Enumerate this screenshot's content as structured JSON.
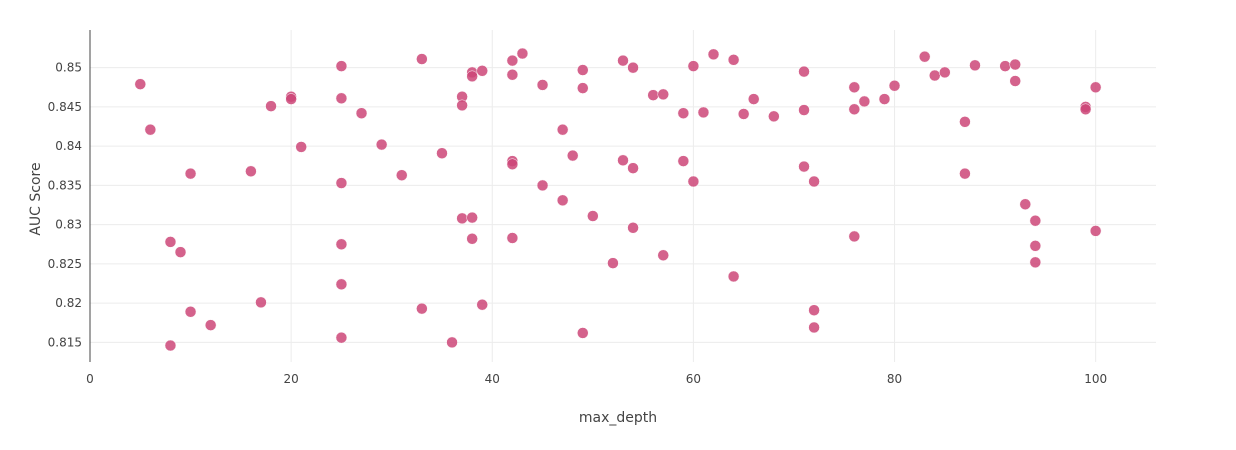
{
  "chart_data": {
    "type": "scatter",
    "title": "",
    "xlabel": "max_depth",
    "ylabel": "AUC Score",
    "xlim": [
      0,
      106
    ],
    "ylim": [
      0.8125,
      0.8548
    ],
    "x_ticks": [
      0,
      20,
      40,
      60,
      80,
      100
    ],
    "x_tick_labels": [
      "0",
      "20",
      "40",
      "60",
      "80",
      "100"
    ],
    "y_ticks": [
      0.815,
      0.82,
      0.825,
      0.83,
      0.835,
      0.84,
      0.845,
      0.85
    ],
    "y_tick_labels": [
      "0.815",
      "0.82",
      "0.825",
      "0.83",
      "0.835",
      "0.84",
      "0.845",
      "0.85"
    ],
    "grid": true,
    "legend": "none",
    "marker_color": "#cc4778",
    "marker_opacity": 0.85,
    "x": [
      5,
      6,
      8,
      8,
      9,
      10,
      10,
      12,
      16,
      17,
      18,
      20,
      20,
      21,
      25,
      25,
      25,
      25,
      25,
      25,
      27,
      29,
      31,
      33,
      33,
      35,
      36,
      37,
      37,
      37,
      38,
      38,
      38,
      38,
      39,
      39,
      42,
      42,
      42,
      42,
      42,
      43,
      45,
      45,
      47,
      47,
      48,
      49,
      49,
      49,
      50,
      52,
      53,
      53,
      54,
      54,
      54,
      56,
      57,
      57,
      59,
      59,
      60,
      60,
      61,
      62,
      64,
      64,
      65,
      66,
      68,
      71,
      71,
      71,
      72,
      72,
      72,
      76,
      76,
      76,
      77,
      79,
      80,
      83,
      84,
      85,
      87,
      87,
      88,
      91,
      92,
      92,
      93,
      94,
      94,
      94,
      99,
      99,
      100,
      100
    ],
    "y": [
      0.8479,
      0.8421,
      0.8278,
      0.8146,
      0.8265,
      0.8365,
      0.8189,
      0.8172,
      0.8368,
      0.8201,
      0.8451,
      0.8463,
      0.846,
      0.8399,
      0.8502,
      0.8461,
      0.8353,
      0.8275,
      0.8224,
      0.8156,
      0.8442,
      0.8402,
      0.8363,
      0.8511,
      0.8193,
      0.8391,
      0.815,
      0.8463,
      0.8452,
      0.8308,
      0.8494,
      0.8489,
      0.8309,
      0.8282,
      0.8496,
      0.8198,
      0.8509,
      0.8491,
      0.8381,
      0.8377,
      0.8283,
      0.8518,
      0.8478,
      0.835,
      0.8421,
      0.8331,
      0.8388,
      0.8497,
      0.8474,
      0.8162,
      0.8311,
      0.8251,
      0.8509,
      0.8382,
      0.85,
      0.8372,
      0.8296,
      0.8465,
      0.8466,
      0.8261,
      0.8442,
      0.8381,
      0.8502,
      0.8355,
      0.8443,
      0.8517,
      0.851,
      0.8234,
      0.8441,
      0.846,
      0.8438,
      0.8495,
      0.8446,
      0.8374,
      0.8355,
      0.8191,
      0.8169,
      0.8475,
      0.8447,
      0.8285,
      0.8457,
      0.846,
      0.8477,
      0.8514,
      0.849,
      0.8494,
      0.8431,
      0.8365,
      0.8503,
      0.8502,
      0.8504,
      0.8483,
      0.8326,
      0.8305,
      0.8273,
      0.8252,
      0.845,
      0.8447,
      0.8475,
      0.8292
    ]
  }
}
